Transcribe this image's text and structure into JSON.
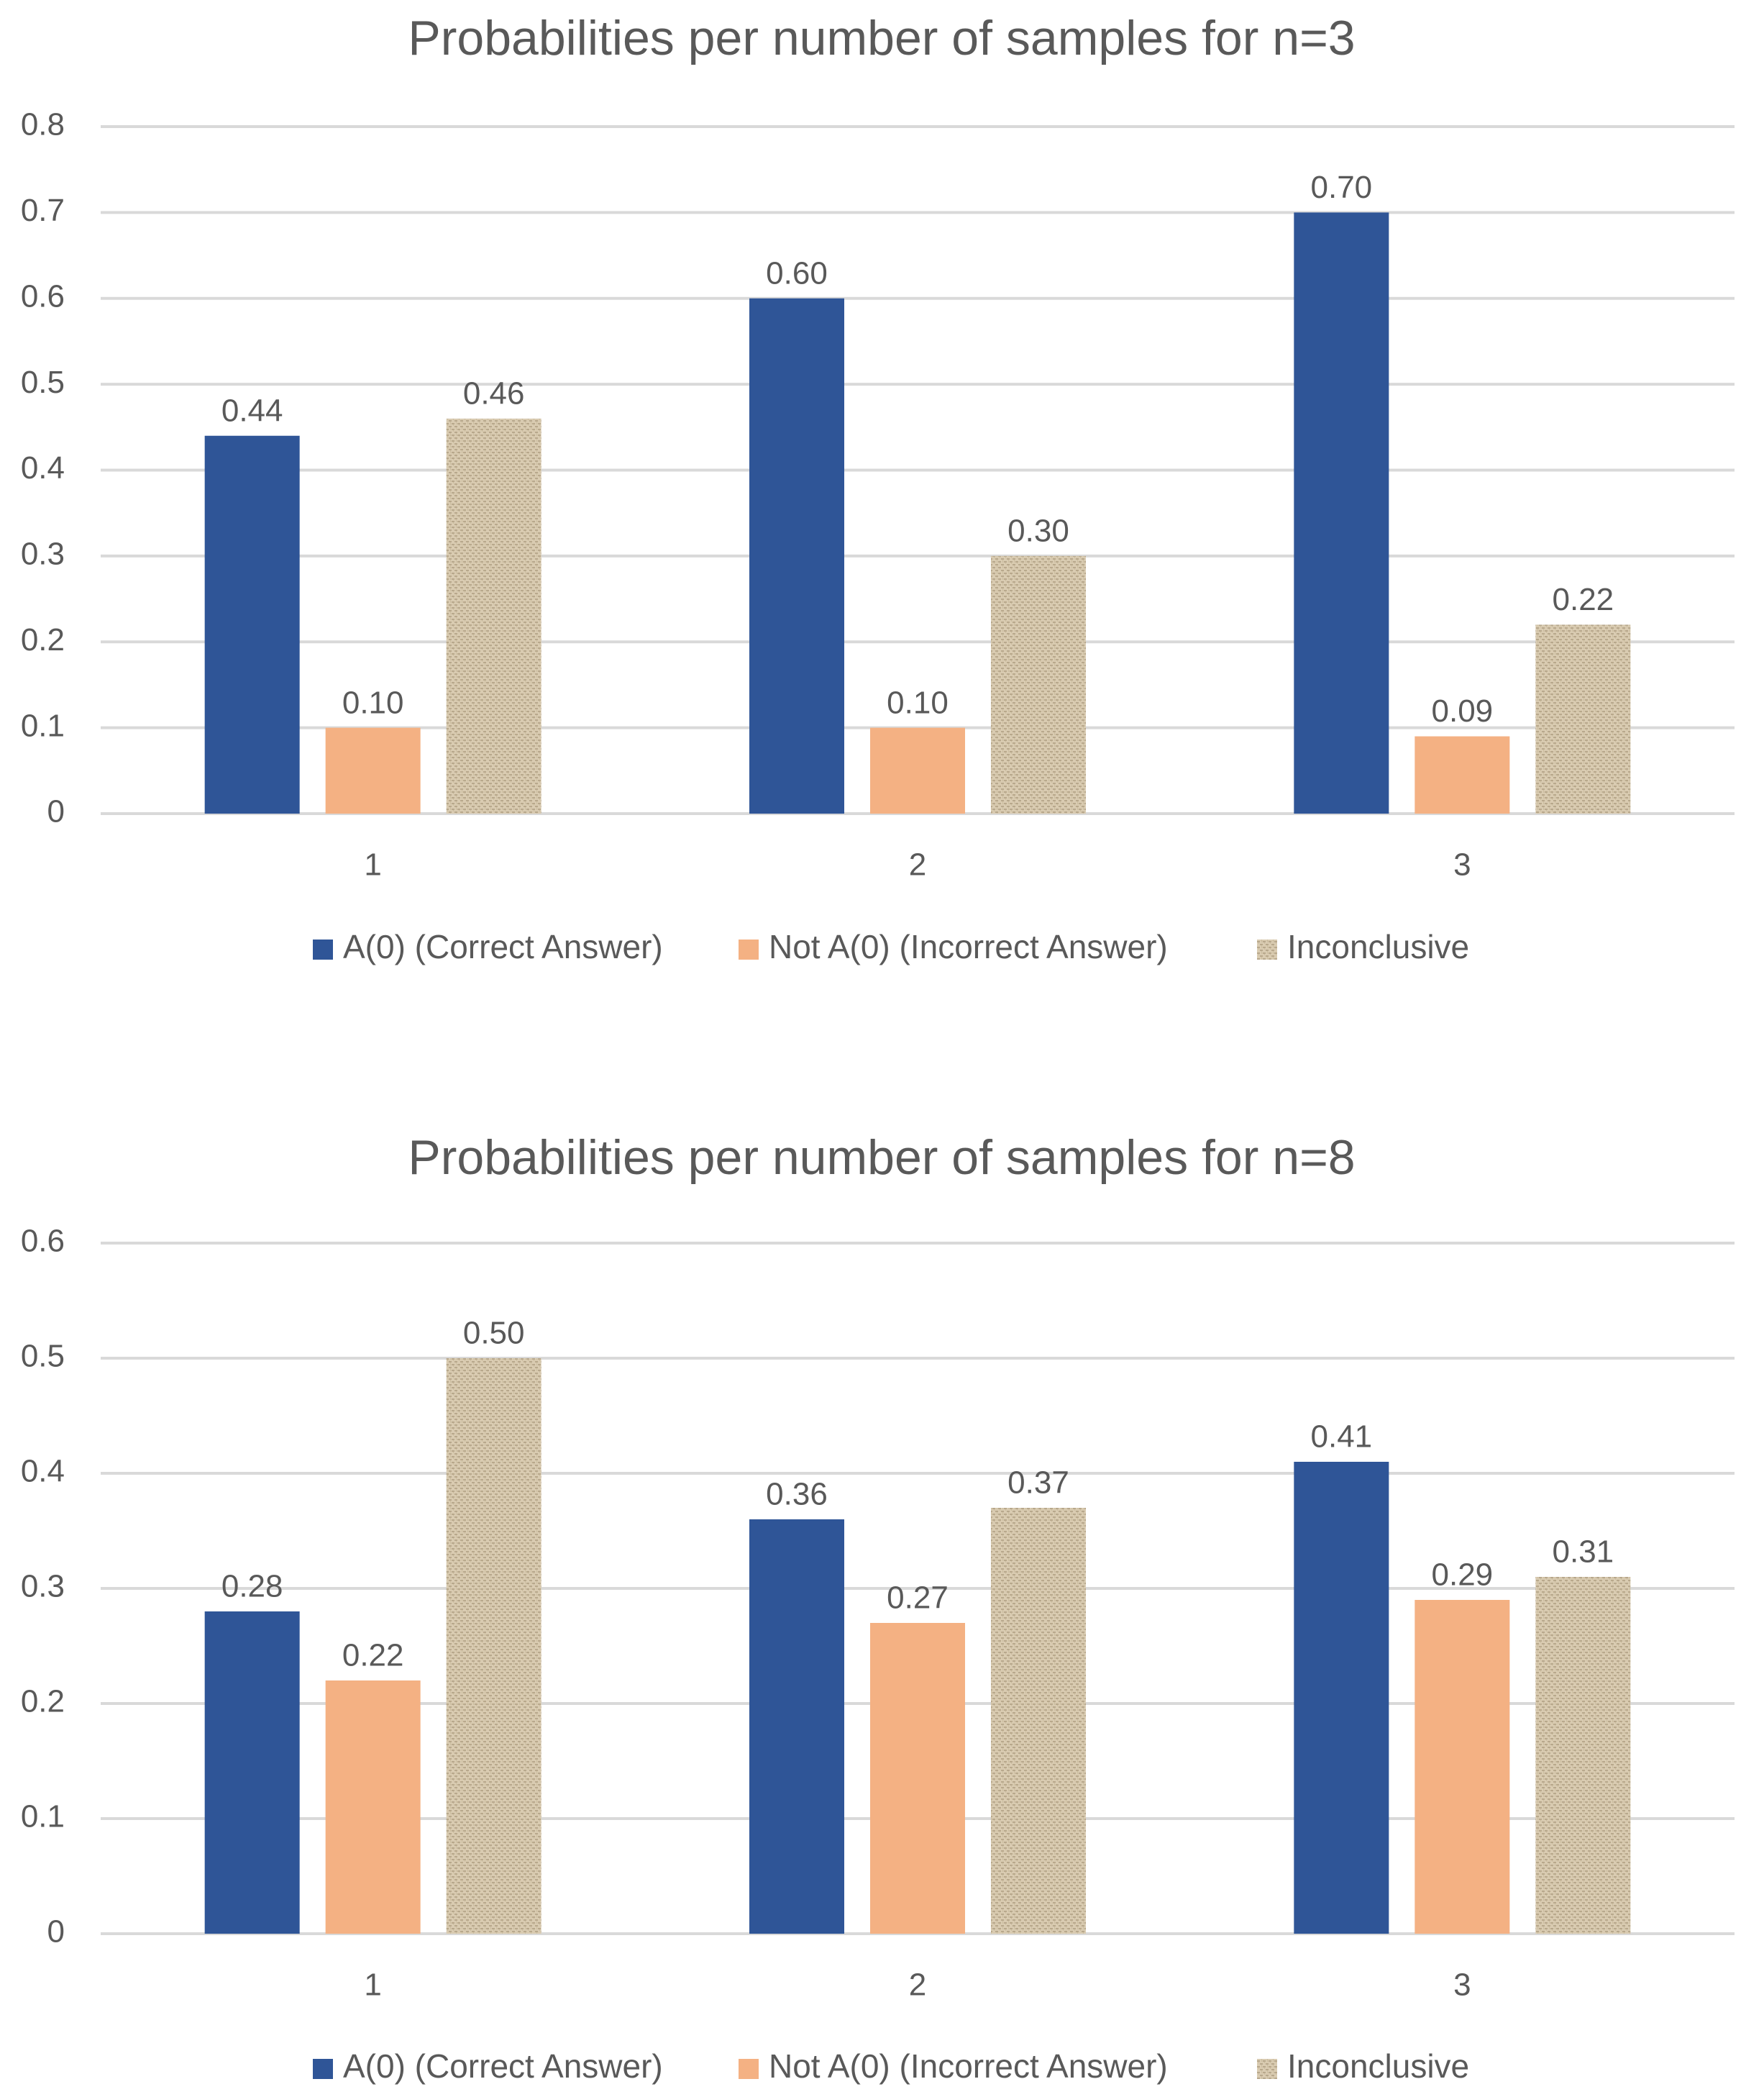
{
  "chart_data": [
    {
      "type": "bar",
      "title": "Probabilities per number of samples for n=3",
      "categories": [
        "1",
        "2",
        "3"
      ],
      "series": [
        {
          "name": "A(0) (Correct Answer)",
          "values": [
            0.44,
            0.6,
            0.7
          ],
          "labels": [
            "0.44",
            "0.60",
            "0.70"
          ]
        },
        {
          "name": "Not A(0) (Incorrect Answer)",
          "values": [
            0.1,
            0.1,
            0.09
          ],
          "labels": [
            "0.10",
            "0.10",
            "0.09"
          ]
        },
        {
          "name": "Inconclusive",
          "values": [
            0.46,
            0.3,
            0.22
          ],
          "labels": [
            "0.46",
            "0.30",
            "0.22"
          ]
        }
      ],
      "yticks": [
        "0",
        "0.1",
        "0.2",
        "0.3",
        "0.4",
        "0.5",
        "0.6",
        "0.7",
        "0.8"
      ],
      "ylim": [
        0,
        0.8
      ],
      "xlabel": "",
      "ylabel": "",
      "grid": true,
      "legend": "bottom"
    },
    {
      "type": "bar",
      "title": "Probabilities per number of samples for n=8",
      "categories": [
        "1",
        "2",
        "3"
      ],
      "series": [
        {
          "name": "A(0) (Correct Answer)",
          "values": [
            0.28,
            0.36,
            0.41
          ],
          "labels": [
            "0.28",
            "0.36",
            "0.41"
          ]
        },
        {
          "name": "Not A(0) (Incorrect Answer)",
          "values": [
            0.22,
            0.27,
            0.29
          ],
          "labels": [
            "0.22",
            "0.27",
            "0.29"
          ]
        },
        {
          "name": "Inconclusive",
          "values": [
            0.5,
            0.37,
            0.31
          ],
          "labels": [
            "0.50",
            "0.37",
            "0.31"
          ]
        }
      ],
      "yticks": [
        "0",
        "0.1",
        "0.2",
        "0.3",
        "0.4",
        "0.5",
        "0.6"
      ],
      "ylim": [
        0,
        0.6
      ],
      "xlabel": "",
      "ylabel": "",
      "grid": true,
      "legend": "bottom"
    }
  ],
  "colors": {
    "series": [
      "#2f5597",
      "#f4b183",
      "#d9cbb1"
    ],
    "pattern_dark": "#b8a88c",
    "grid": "#d9d9d9",
    "text": "#595959",
    "title": "#595959"
  }
}
